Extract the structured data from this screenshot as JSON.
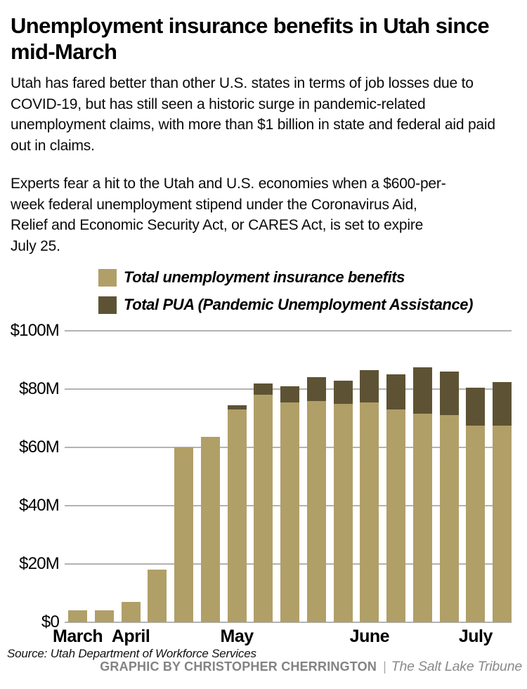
{
  "header": {
    "title": "Unemployment insurance benefits in Utah since mid-March",
    "paragraphs": [
      "Utah has fared better than other U.S. states in terms of job losses due to COVID-19, but has still seen a historic surge in pandemic-related unemployment claims, with more than $1 billion in state and federal aid paid out in claims.",
      "Experts fear a hit to the Utah and U.S. economies when a $600-per-week federal unemployment stipend under the Coronavirus Aid, Relief and Economic Security Act, or CARES Act, is set to expire July 25."
    ]
  },
  "legend": {
    "items": [
      {
        "label": "Total unemployment insurance benefits",
        "color": "#b19f68"
      },
      {
        "label": "Total PUA (Pandemic Unemployment Assistance)",
        "color": "#5d5334"
      }
    ]
  },
  "chart_data": {
    "type": "bar",
    "stacked": true,
    "unit": "USD millions per week",
    "ylim": [
      0,
      100
    ],
    "grid": true,
    "y_ticks": [
      {
        "label": "$100M",
        "value": 100
      },
      {
        "label": "$80M",
        "value": 80
      },
      {
        "label": "$60M",
        "value": 60
      },
      {
        "label": "$40M",
        "value": 40
      },
      {
        "label": "$20M",
        "value": 20
      },
      {
        "label": "$0",
        "value": 0
      }
    ],
    "month_labels": [
      {
        "label": "March",
        "bar_index": 0
      },
      {
        "label": "April",
        "bar_index": 2
      },
      {
        "label": "May",
        "bar_index": 6
      },
      {
        "label": "June",
        "bar_index": 11
      },
      {
        "label": "July",
        "bar_index": 15
      }
    ],
    "series": [
      {
        "name": "Total unemployment insurance benefits",
        "color": "#b19f68",
        "values": [
          4,
          4,
          7,
          18,
          60,
          63.5,
          73,
          78,
          75.5,
          76,
          75,
          75.5,
          73,
          71.5,
          71,
          67.5,
          67.5
        ]
      },
      {
        "name": "Total PUA (Pandemic Unemployment Assistance)",
        "color": "#5d5334",
        "values": [
          0,
          0,
          0,
          0,
          0,
          0,
          1.5,
          4,
          5.5,
          8,
          8,
          11,
          12,
          16,
          15,
          13,
          15
        ]
      }
    ],
    "stacked_totals": [
      4,
      4,
      7,
      18,
      60,
      63.5,
      74.5,
      82,
      81,
      84,
      83,
      86.5,
      85,
      87.5,
      86,
      80.5,
      82.5
    ]
  },
  "footer": {
    "source": "Source: Utah Department of Workforce Services",
    "credit": "GRAPHIC BY CHRISTOPHER CHERRINGTON",
    "separator": "|",
    "brand": "The Salt Lake Tribune"
  }
}
